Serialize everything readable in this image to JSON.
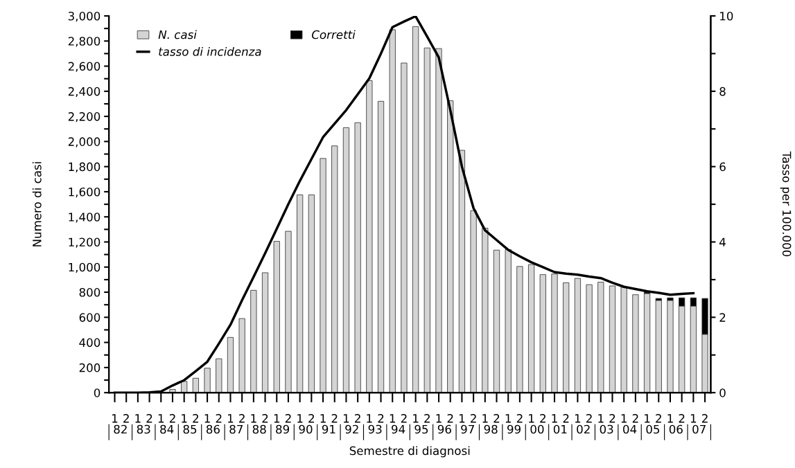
{
  "chart_data": {
    "type": "bar",
    "stacked": true,
    "xlabel": "Semestre di diagnosi",
    "ylabel": "Numero di casi",
    "y2label": "Tasso per 100.000",
    "categories": [
      "1",
      "2",
      "1",
      "2",
      "1",
      "2",
      "1",
      "2",
      "1",
      "2",
      "1",
      "2",
      "1",
      "2",
      "1",
      "2",
      "1",
      "2",
      "1",
      "2",
      "1",
      "2",
      "1",
      "2",
      "1",
      "2",
      "1",
      "2",
      "1",
      "2",
      "1",
      "2",
      "1",
      "2",
      "1",
      "2",
      "1",
      "2",
      "1",
      "2",
      "1",
      "2",
      "1",
      "2",
      "1",
      "2",
      "1",
      "2",
      "1",
      "2",
      "1",
      "2"
    ],
    "annotations": [
      "82",
      "83",
      "84",
      "85",
      "86",
      "87",
      "88",
      "89",
      "90",
      "91",
      "92",
      "93",
      "94",
      "95",
      "96",
      "97",
      "98",
      "99",
      "00",
      "01",
      "02",
      "03",
      "04",
      "05",
      "06",
      "07"
    ],
    "series": [
      {
        "name": "N. casi",
        "color": "#d4d4d4",
        "values": [
          0,
          0,
          2,
          null,
          null,
          26,
          90,
          115,
          195,
          270,
          440,
          590,
          815,
          955,
          1205,
          1285,
          1575,
          1575,
          1865,
          1965,
          2110,
          2150,
          2485,
          2320,
          2890,
          2625,
          2915,
          2745,
          2740,
          2325,
          1930,
          1450,
          1310,
          1135,
          1140,
          1005,
          1020,
          940,
          945,
          875,
          910,
          860,
          880,
          850,
          840,
          780,
          790,
          735,
          735,
          690,
          690,
          465
        ]
      },
      {
        "name": "Corretti",
        "color": "#000000",
        "values": [
          null,
          null,
          null,
          null,
          null,
          null,
          null,
          null,
          null,
          null,
          null,
          null,
          null,
          null,
          null,
          null,
          null,
          null,
          null,
          null,
          null,
          null,
          null,
          null,
          null,
          null,
          null,
          null,
          null,
          null,
          null,
          null,
          null,
          null,
          null,
          null,
          null,
          null,
          null,
          null,
          null,
          null,
          null,
          null,
          null,
          null,
          10,
          15,
          20,
          65,
          65,
          285
        ]
      },
      {
        "name": "tasso di incidenza",
        "type": "line",
        "axis": "y2",
        "color": "#000000",
        "values": [
          0,
          0,
          0,
          0.01,
          0.03,
          0.19,
          0.33,
          0.57,
          0.82,
          1.3,
          1.8,
          2.45,
          3.07,
          3.7,
          4.35,
          5.0,
          5.62,
          6.2,
          6.78,
          7.14,
          7.5,
          7.92,
          8.34,
          9.0,
          9.7,
          9.85,
          9.99,
          9.45,
          8.9,
          7.5,
          6.0,
          4.9,
          4.31,
          4.05,
          3.79,
          3.62,
          3.46,
          3.33,
          3.2,
          3.16,
          3.13,
          3.08,
          3.04,
          2.92,
          2.81,
          2.75,
          2.69,
          2.65,
          2.6,
          2.62,
          2.64,
          null
        ]
      }
    ],
    "ylim": [
      0,
      3000
    ],
    "yticks": [
      0,
      {
        "value": 100,
        "label": null
      },
      200,
      {
        "value": 300,
        "label": null
      },
      400,
      {
        "value": 500,
        "label": null
      },
      600,
      {
        "value": 700,
        "label": null
      },
      800,
      {
        "value": 900,
        "label": null
      },
      {
        "value": 1000,
        "label": "1,000"
      },
      {
        "value": 1100,
        "label": null
      },
      {
        "value": 1200,
        "label": "1,200"
      },
      {
        "value": 1300,
        "label": null
      },
      {
        "value": 1400,
        "label": "1,400"
      },
      {
        "value": 1500,
        "label": null
      },
      {
        "value": 1600,
        "label": "1,600"
      },
      {
        "value": 1700,
        "label": null
      },
      {
        "value": 1800,
        "label": "1,800"
      },
      {
        "value": 1900,
        "label": null
      },
      {
        "value": 2000,
        "label": "2,000"
      },
      {
        "value": 2100,
        "label": null
      },
      {
        "value": 2200,
        "label": "2,200"
      },
      {
        "value": 2300,
        "label": null
      },
      {
        "value": 2400,
        "label": "2,400"
      },
      {
        "value": 2500,
        "label": null
      },
      {
        "value": 2600,
        "label": "2,600"
      },
      {
        "value": 2700,
        "label": null
      },
      {
        "value": 2800,
        "label": "2,800"
      },
      {
        "value": 2900,
        "label": null
      },
      {
        "value": 3000,
        "label": "3,000"
      }
    ],
    "y2lim": [
      0,
      10
    ],
    "y2ticks": [
      0,
      {
        "value": 1,
        "label": null
      },
      2,
      {
        "value": 3,
        "label": null
      },
      4,
      {
        "value": 5,
        "label": null
      },
      6,
      {
        "value": 7,
        "label": null
      },
      8,
      {
        "value": 9,
        "label": null
      },
      10
    ],
    "legend": "top left",
    "grid": false,
    "line_style": "solid",
    "marker": "none"
  }
}
